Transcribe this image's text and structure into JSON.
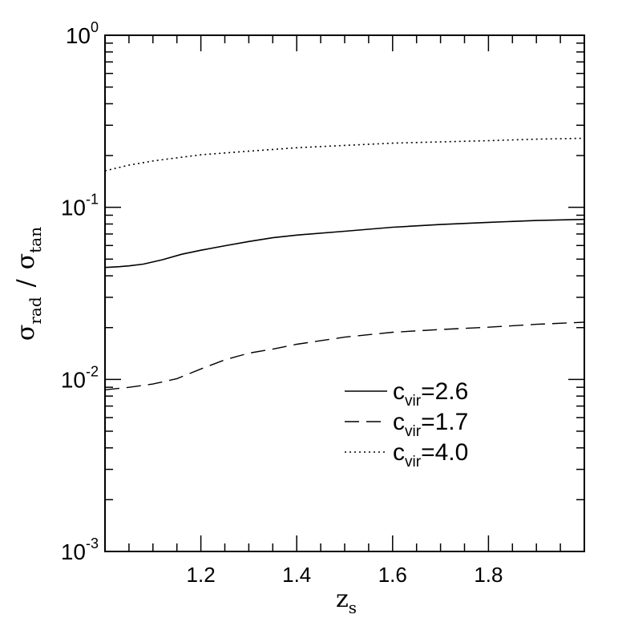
{
  "chart_data": {
    "type": "line",
    "xlabel": "z",
    "xlabel_sub": "s",
    "ylabel": {
      "numerator_symbol": "σ",
      "numerator_sub": "rad",
      "separator": "/",
      "denominator_symbol": "σ",
      "denominator_sub": "tan"
    },
    "xlim": [
      1.0,
      2.0
    ],
    "ylim": [
      0.001,
      1.0
    ],
    "yscale": "log",
    "grid": false,
    "legend_position": "lower-right",
    "x_ticks": [
      {
        "value": 1.2,
        "label": "1.2"
      },
      {
        "value": 1.4,
        "label": "1.4"
      },
      {
        "value": 1.6,
        "label": "1.6"
      },
      {
        "value": 1.8,
        "label": "1.8"
      }
    ],
    "y_ticks": [
      {
        "value": 1.0,
        "base": "10",
        "exp": "0"
      },
      {
        "value": 0.1,
        "base": "10",
        "exp": "-1"
      },
      {
        "value": 0.01,
        "base": "10",
        "exp": "-2"
      },
      {
        "value": 0.001,
        "base": "10",
        "exp": "-3"
      }
    ],
    "series": [
      {
        "name": "c_vir=2.6",
        "label_base": "c",
        "label_sub": "vir",
        "label_value": "=2.6",
        "style": "solid",
        "x": [
          1.0,
          1.03,
          1.05,
          1.08,
          1.12,
          1.16,
          1.2,
          1.25,
          1.3,
          1.35,
          1.4,
          1.5,
          1.6,
          1.7,
          1.8,
          1.9,
          2.0
        ],
        "y": [
          0.0447,
          0.0452,
          0.0457,
          0.0468,
          0.0496,
          0.0534,
          0.0563,
          0.0598,
          0.0633,
          0.0666,
          0.069,
          0.0726,
          0.0766,
          0.0795,
          0.0818,
          0.0838,
          0.0851
        ]
      },
      {
        "name": "c_vir=1.7",
        "label_base": "c",
        "label_sub": "vir",
        "label_value": "=1.7",
        "style": "dashed",
        "x": [
          1.0,
          1.05,
          1.1,
          1.15,
          1.2,
          1.25,
          1.3,
          1.35,
          1.4,
          1.5,
          1.6,
          1.7,
          1.8,
          1.9,
          2.0
        ],
        "y": [
          0.0087,
          0.009,
          0.0094,
          0.0101,
          0.0115,
          0.013,
          0.0142,
          0.015,
          0.016,
          0.0176,
          0.0188,
          0.0195,
          0.0201,
          0.0209,
          0.0215
        ]
      },
      {
        "name": "c_vir=4.0",
        "label_base": "c",
        "label_sub": "vir",
        "label_value": "=4.0",
        "style": "dotted",
        "x": [
          1.0,
          1.05,
          1.1,
          1.15,
          1.2,
          1.3,
          1.4,
          1.5,
          1.6,
          1.7,
          1.8,
          1.9,
          2.0
        ],
        "y": [
          0.163,
          0.176,
          0.186,
          0.194,
          0.202,
          0.212,
          0.222,
          0.229,
          0.236,
          0.24,
          0.244,
          0.249,
          0.252
        ]
      }
    ]
  }
}
